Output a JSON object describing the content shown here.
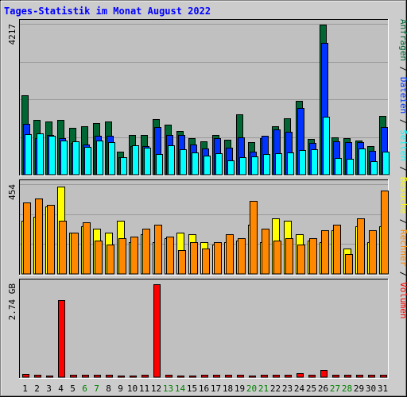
{
  "title": "Tages-Statistik im Monat August 2022",
  "colors": {
    "page_bg": "#cccccc",
    "plot_bg": "#c0c0c0",
    "title": "#0000ff",
    "anfragen": "#006633",
    "dateien": "#0033ff",
    "seiten": "#00ffff",
    "besuche": "#ffff00",
    "rechner": "#ff8800",
    "volumen": "#ff0000",
    "weekend_day": "#008000",
    "weekday_day": "#000000",
    "grid": "#999999"
  },
  "chart_data": [
    {
      "type": "bar",
      "name": "requests",
      "ymax_label": "4217",
      "ymax": 4217,
      "categories": [
        "1",
        "2",
        "3",
        "4",
        "5",
        "6",
        "7",
        "8",
        "9",
        "10",
        "11",
        "12",
        "13",
        "14",
        "15",
        "16",
        "17",
        "18",
        "19",
        "20",
        "21",
        "22",
        "23",
        "24",
        "25",
        "26",
        "27",
        "28",
        "29",
        "30",
        "31"
      ],
      "weekend_days": [
        "6",
        "7",
        "13",
        "14",
        "20",
        "21",
        "27",
        "28"
      ],
      "series": [
        {
          "name": "Anfragen",
          "color_key": "anfragen",
          "values": [
            2220,
            1530,
            1480,
            1530,
            1320,
            1350,
            1450,
            1480,
            640,
            1120,
            1120,
            1560,
            1400,
            1230,
            1010,
            940,
            1120,
            980,
            1680,
            900,
            1010,
            1360,
            1580,
            2070,
            990,
            4200,
            1040,
            1010,
            960,
            790,
            1650
          ]
        },
        {
          "name": "Dateien",
          "color_key": "dateien",
          "values": [
            1430,
            1010,
            1100,
            1010,
            880,
            850,
            1080,
            1090,
            490,
            810,
            810,
            1330,
            1110,
            1100,
            840,
            730,
            1010,
            760,
            1050,
            650,
            1090,
            1260,
            1200,
            1860,
            890,
            3680,
            930,
            910,
            910,
            660,
            1330
          ]
        },
        {
          "name": "Seiten",
          "color_key": "seiten",
          "values": [
            1140,
            1160,
            1090,
            950,
            930,
            780,
            960,
            900,
            490,
            830,
            760,
            570,
            820,
            710,
            620,
            530,
            610,
            390,
            480,
            500,
            570,
            610,
            620,
            690,
            720,
            1630,
            460,
            450,
            730,
            380,
            640
          ]
        }
      ]
    },
    {
      "type": "bar",
      "name": "visits",
      "ymax_label": "454",
      "ymax": 454,
      "categories": [
        "1",
        "2",
        "3",
        "4",
        "5",
        "6",
        "7",
        "8",
        "9",
        "10",
        "11",
        "12",
        "13",
        "14",
        "15",
        "16",
        "17",
        "18",
        "19",
        "20",
        "21",
        "22",
        "23",
        "24",
        "25",
        "26",
        "27",
        "28",
        "29",
        "30",
        "31"
      ],
      "series": [
        {
          "name": "Besuche",
          "color_key": "besuche",
          "values": [
            270,
            290,
            340,
            440,
            210,
            240,
            230,
            210,
            270,
            160,
            200,
            160,
            180,
            210,
            200,
            160,
            150,
            160,
            170,
            250,
            160,
            280,
            270,
            200,
            170,
            160,
            220,
            130,
            240,
            160,
            240
          ]
        },
        {
          "name": "Rechner",
          "color_key": "rechner",
          "values": [
            360,
            380,
            350,
            270,
            210,
            260,
            170,
            150,
            180,
            190,
            230,
            250,
            190,
            120,
            160,
            130,
            160,
            200,
            180,
            370,
            230,
            170,
            180,
            150,
            180,
            220,
            250,
            100,
            280,
            220,
            420
          ]
        }
      ]
    },
    {
      "type": "bar",
      "name": "volume",
      "ymax_label": "2.74 GB",
      "ymax": 2.74,
      "unit": "GB",
      "categories": [
        "1",
        "2",
        "3",
        "4",
        "5",
        "6",
        "7",
        "8",
        "9",
        "10",
        "11",
        "12",
        "13",
        "14",
        "15",
        "16",
        "17",
        "18",
        "19",
        "20",
        "21",
        "22",
        "23",
        "24",
        "25",
        "26",
        "27",
        "28",
        "29",
        "30",
        "31"
      ],
      "series": [
        {
          "name": "Volumen",
          "color_key": "volumen",
          "values": [
            0.1,
            0.06,
            0.05,
            2.26,
            0.06,
            0.06,
            0.06,
            0.06,
            0.05,
            0.05,
            0.06,
            2.72,
            0.08,
            0.05,
            0.05,
            0.06,
            0.06,
            0.08,
            0.08,
            0.05,
            0.06,
            0.08,
            0.08,
            0.11,
            0.06,
            0.21,
            0.06,
            0.06,
            0.06,
            0.06,
            0.06
          ]
        }
      ]
    }
  ],
  "legend_right_top": [
    {
      "text": "Anfragen",
      "color_key": "anfragen"
    },
    {
      "text": " / ",
      "color_key": "weekday_day"
    },
    {
      "text": "Dateien",
      "color_key": "dateien"
    },
    {
      "text": " / ",
      "color_key": "weekday_day"
    },
    {
      "text": "Seiten",
      "color_key": "seiten"
    },
    {
      "text": " / ",
      "color_key": "weekday_day"
    },
    {
      "text": "Besuche",
      "color_key": "besuche"
    },
    {
      "text": " / ",
      "color_key": "weekday_day"
    },
    {
      "text": "Rechner",
      "color_key": "rechner"
    },
    {
      "text": " / ",
      "color_key": "weekday_day"
    },
    {
      "text": "Volumen",
      "color_key": "volumen"
    }
  ]
}
